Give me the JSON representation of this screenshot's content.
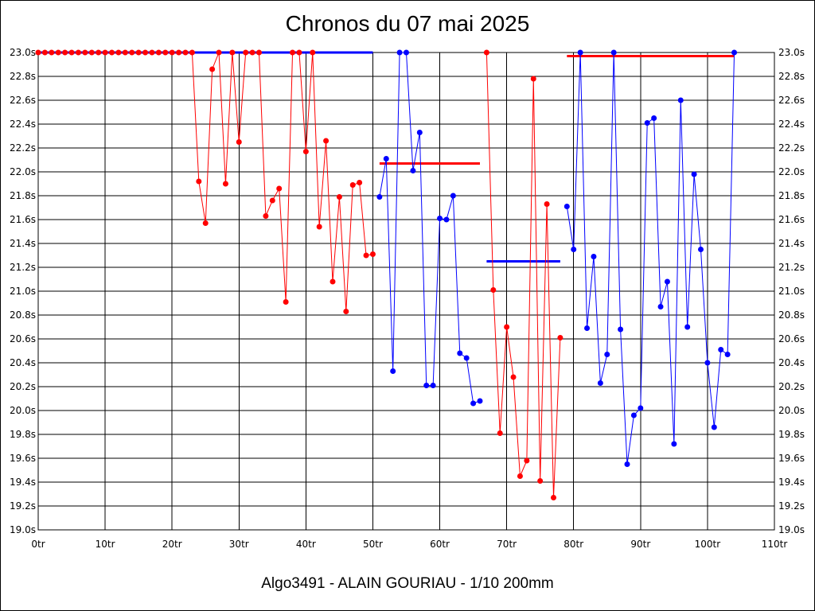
{
  "chart_data": {
    "type": "line",
    "title": "Chronos du 07 mai 2025",
    "subtitle": "Algo3491 - ALAIN GOURIAU - 1/10 200mm",
    "xlim": [
      0,
      110
    ],
    "ylim": [
      19.0,
      23.0
    ],
    "x_ticks": [
      0,
      10,
      20,
      30,
      40,
      50,
      60,
      70,
      80,
      90,
      100,
      110
    ],
    "x_tick_labels": [
      "0tr",
      "10tr",
      "20tr",
      "30tr",
      "40tr",
      "50tr",
      "60tr",
      "70tr",
      "80tr",
      "90tr",
      "100tr",
      "110tr"
    ],
    "y_ticks": [
      19.0,
      19.2,
      19.4,
      19.6,
      19.8,
      20.0,
      20.2,
      20.4,
      20.6,
      20.8,
      21.0,
      21.2,
      21.4,
      21.6,
      21.8,
      22.0,
      22.2,
      22.4,
      22.6,
      22.8,
      23.0
    ],
    "y_tick_labels": [
      "19.0s",
      "19.2s",
      "19.4s",
      "19.6s",
      "19.8s",
      "20.0s",
      "20.2s",
      "20.4s",
      "20.6s",
      "20.8s",
      "21.0s",
      "21.2s",
      "21.4s",
      "21.6s",
      "21.8s",
      "22.0s",
      "22.2s",
      "22.4s",
      "22.6s",
      "22.8s",
      "23.0s"
    ],
    "grid": true,
    "y_labels_both_sides": true,
    "series": [
      {
        "color": "#ff0000",
        "x": [
          0,
          1,
          2,
          3,
          4,
          5,
          6,
          7,
          8,
          9,
          10,
          11,
          12,
          13,
          14,
          15,
          16,
          17,
          18,
          19,
          20,
          21,
          22,
          23,
          24,
          25,
          26,
          27,
          28,
          29,
          30,
          31,
          32,
          33,
          34,
          35,
          36,
          37,
          38,
          39,
          40,
          41,
          42,
          43,
          44,
          45,
          46,
          47,
          48,
          49,
          50
        ],
        "y": [
          23.0,
          23.0,
          23.0,
          23.0,
          23.0,
          23.0,
          23.0,
          23.0,
          23.0,
          23.0,
          23.0,
          23.0,
          23.0,
          23.0,
          23.0,
          23.0,
          23.0,
          23.0,
          23.0,
          23.0,
          23.0,
          23.0,
          23.0,
          23.0,
          21.92,
          21.57,
          22.86,
          23.0,
          21.9,
          23.0,
          22.25,
          23.0,
          23.0,
          23.0,
          21.63,
          21.76,
          21.86,
          20.91,
          23.0,
          23.0,
          22.17,
          23.0,
          21.54,
          22.26,
          21.08,
          21.79,
          20.83,
          21.89,
          21.91,
          21.3,
          21.31
        ]
      },
      {
        "color": "#0000ff",
        "x": [
          51,
          52,
          53,
          54,
          55,
          56,
          57,
          58,
          59,
          60,
          61,
          62,
          63,
          64,
          65,
          66
        ],
        "y": [
          21.79,
          22.11,
          20.33,
          23.0,
          23.0,
          22.01,
          22.33,
          20.21,
          20.21,
          21.61,
          21.6,
          21.8,
          20.48,
          20.44,
          20.06,
          20.08
        ]
      },
      {
        "color": "#ff0000",
        "x": [
          67,
          68,
          69,
          70,
          71,
          72,
          73,
          74,
          75,
          76,
          77,
          78
        ],
        "y": [
          23.0,
          21.01,
          19.81,
          20.7,
          20.28,
          19.45,
          19.58,
          22.78,
          19.41,
          21.73,
          19.27,
          20.61
        ]
      },
      {
        "color": "#0000ff",
        "x": [
          79,
          80,
          81,
          82,
          83,
          84,
          85,
          86,
          87,
          88,
          89,
          90,
          91,
          92,
          93,
          94,
          95,
          96,
          97,
          98,
          99,
          100,
          101,
          102,
          103,
          104
        ],
        "y": [
          21.71,
          21.35,
          23.0,
          20.69,
          21.29,
          20.23,
          20.47,
          23.0,
          20.68,
          19.55,
          19.96,
          20.02,
          22.41,
          22.45,
          20.87,
          21.08,
          19.72,
          22.6,
          20.7,
          21.98,
          21.35,
          20.4,
          19.86,
          20.51,
          20.47,
          23.0
        ]
      }
    ],
    "average_lines": [
      {
        "color": "#0000ff",
        "x": [
          0,
          50
        ],
        "y": 23.0
      },
      {
        "color": "#ff0000",
        "x": [
          51,
          66
        ],
        "y": 22.07
      },
      {
        "color": "#0000ff",
        "x": [
          67,
          78
        ],
        "y": 21.25
      },
      {
        "color": "#ff0000",
        "x": [
          79,
          104
        ],
        "y": 22.97
      }
    ]
  }
}
